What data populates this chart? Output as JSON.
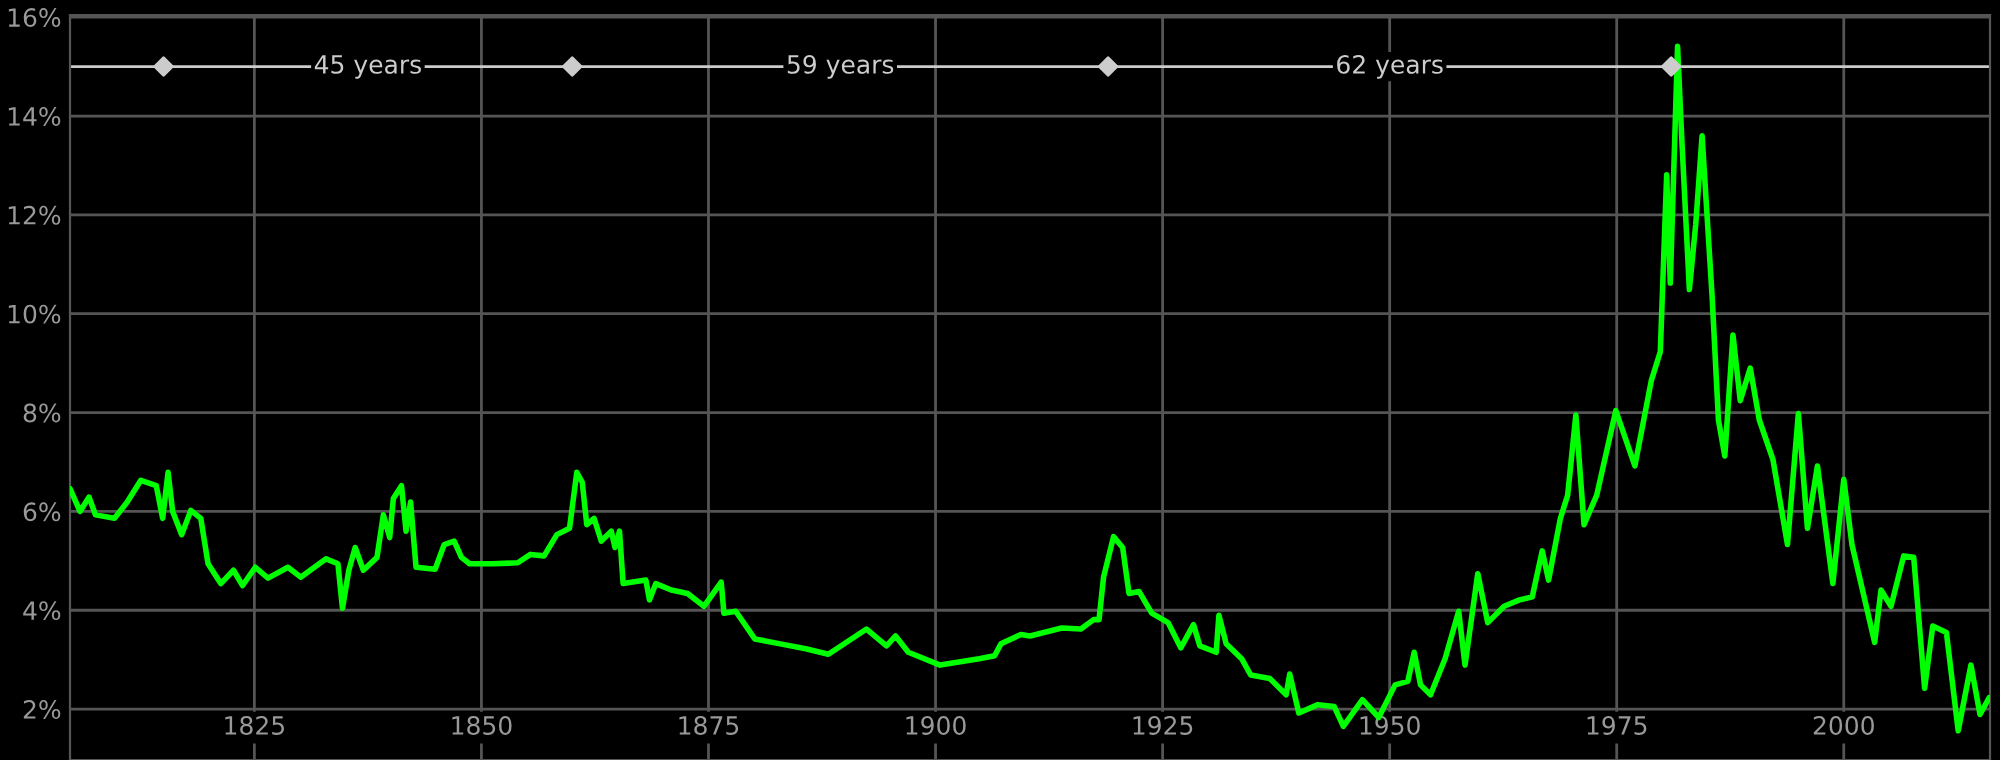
{
  "chart_data": {
    "type": "line",
    "xlim": [
      1804.7,
      2016.1
    ],
    "ylim": [
      0.97,
      16.04
    ],
    "xticks": [
      1825,
      1850,
      1875,
      1900,
      1925,
      1950,
      1975,
      2000
    ],
    "yticks": [
      {
        "value": 2,
        "label": "2%"
      },
      {
        "value": 4,
        "label": "4%"
      },
      {
        "value": 6,
        "label": "6%"
      },
      {
        "value": 8,
        "label": "8%"
      },
      {
        "value": 10,
        "label": "10%"
      },
      {
        "value": 12,
        "label": "12%"
      },
      {
        "value": 14,
        "label": "14%"
      },
      {
        "value": 16,
        "label": "16%"
      }
    ],
    "grid": true,
    "series": [
      {
        "color": "#00ff00",
        "x": [
          1804.7,
          1805.8,
          1806.8,
          1807.5,
          1809.6,
          1811.0,
          1812.5,
          1814.2,
          1814.9,
          1815.5,
          1816.0,
          1817.0,
          1818.0,
          1819.1,
          1819.9,
          1821.3,
          1822.7,
          1823.7,
          1825.1,
          1826.5,
          1828.7,
          1830.1,
          1832.9,
          1834.2,
          1834.7,
          1835.4,
          1836.1,
          1837.0,
          1838.5,
          1839.2,
          1839.9,
          1840.3,
          1841.2,
          1841.7,
          1842.2,
          1842.8,
          1844.9,
          1845.9,
          1847.0,
          1847.8,
          1848.7,
          1851.2,
          1854.0,
          1855.4,
          1856.9,
          1858.3,
          1859.7,
          1860.5,
          1861.1,
          1861.6,
          1862.4,
          1863.2,
          1864.3,
          1864.7,
          1865.2,
          1865.6,
          1868.1,
          1868.5,
          1869.2,
          1870.9,
          1872.7,
          1874.5,
          1876.4,
          1876.7,
          1878.0,
          1880.1,
          1882.9,
          1885.7,
          1888.2,
          1892.4,
          1894.6,
          1895.6,
          1897.0,
          1900.5,
          1904.8,
          1906.5,
          1907.2,
          1909.4,
          1910.4,
          1913.9,
          1916.0,
          1917.4,
          1918.0,
          1918.5,
          1919.6,
          1920.6,
          1921.3,
          1922.4,
          1923.8,
          1925.6,
          1927.0,
          1928.4,
          1929.1,
          1930.9,
          1931.2,
          1932.0,
          1933.7,
          1934.7,
          1936.8,
          1938.6,
          1939.0,
          1940.0,
          1942.1,
          1943.9,
          1944.9,
          1947.0,
          1948.8,
          1950.6,
          1952.0,
          1952.7,
          1953.4,
          1954.5,
          1956.1,
          1957.6,
          1958.3,
          1959.7,
          1960.8,
          1962.6,
          1964.3,
          1965.7,
          1966.8,
          1967.5,
          1968.8,
          1969.6,
          1970.5,
          1971.4,
          1972.8,
          1974.9,
          1977.0,
          1978.8,
          1979.8,
          1980.5,
          1980.9,
          1981.7,
          1982.2,
          1983.0,
          1983.7,
          1984.4,
          1985.5,
          1986.2,
          1986.9,
          1987.8,
          1988.6,
          1989.7,
          1990.7,
          1992.2,
          1993.8,
          1995.0,
          1996.0,
          1997.1,
          1998.8,
          2000.0,
          2000.9,
          2003.4,
          2004.1,
          2005.2,
          2006.6,
          2007.7,
          2008.9,
          2009.8,
          2011.3,
          2012.6,
          2014.0,
          2015.0,
          2016.0
        ],
        "values": [
          6.46,
          6.0,
          6.29,
          5.93,
          5.86,
          6.19,
          6.63,
          6.52,
          5.86,
          6.79,
          6.0,
          5.53,
          6.02,
          5.86,
          4.94,
          4.54,
          4.81,
          4.5,
          4.87,
          4.65,
          4.87,
          4.67,
          5.04,
          4.94,
          4.04,
          4.81,
          5.27,
          4.81,
          5.07,
          5.93,
          5.47,
          6.26,
          6.52,
          5.6,
          6.19,
          4.87,
          4.83,
          5.33,
          5.4,
          5.07,
          4.94,
          4.94,
          4.96,
          5.13,
          5.1,
          5.53,
          5.66,
          6.79,
          6.59,
          5.73,
          5.86,
          5.4,
          5.6,
          5.27,
          5.6,
          4.54,
          4.61,
          4.21,
          4.54,
          4.41,
          4.34,
          4.08,
          4.57,
          3.94,
          3.98,
          3.42,
          3.32,
          3.22,
          3.11,
          3.62,
          3.28,
          3.48,
          3.15,
          2.89,
          3.02,
          3.08,
          3.32,
          3.51,
          3.48,
          3.64,
          3.62,
          3.81,
          3.81,
          4.67,
          5.49,
          5.27,
          4.34,
          4.38,
          3.94,
          3.75,
          3.24,
          3.71,
          3.28,
          3.15,
          3.9,
          3.32,
          3.02,
          2.69,
          2.62,
          2.29,
          2.71,
          1.92,
          2.09,
          2.05,
          1.65,
          2.19,
          1.83,
          2.49,
          2.56,
          3.15,
          2.49,
          2.29,
          3.02,
          3.98,
          2.89,
          4.74,
          3.75,
          4.08,
          4.21,
          4.27,
          5.2,
          4.61,
          5.86,
          6.33,
          7.95,
          5.73,
          6.33,
          8.04,
          6.92,
          8.64,
          9.23,
          12.81,
          10.62,
          15.41,
          13.4,
          10.49,
          11.81,
          13.6,
          10.36,
          7.85,
          7.12,
          9.57,
          8.24,
          8.9,
          7.85,
          7.05,
          5.33,
          7.98,
          5.66,
          6.92,
          4.54,
          6.65,
          5.33,
          3.35,
          4.41,
          4.08,
          5.1,
          5.07,
          2.42,
          3.68,
          3.55,
          1.56,
          2.89,
          1.89,
          2.23
        ]
      },
      {
        "type": "scatter",
        "color": "#cccccc",
        "marker": "diamond",
        "x": [
          1815,
          1860,
          1919,
          1981
        ],
        "values": [
          15,
          15,
          15,
          15
        ]
      }
    ],
    "ref_lines": [
      {
        "axis": "y",
        "value": 15,
        "color": "#cccccc"
      }
    ],
    "annotations": [
      {
        "text": "45 years",
        "x": 1837.5,
        "y": 15
      },
      {
        "text": "59 years",
        "x": 1889.5,
        "y": 15
      },
      {
        "text": "62 years",
        "x": 1950,
        "y": 15
      }
    ]
  }
}
